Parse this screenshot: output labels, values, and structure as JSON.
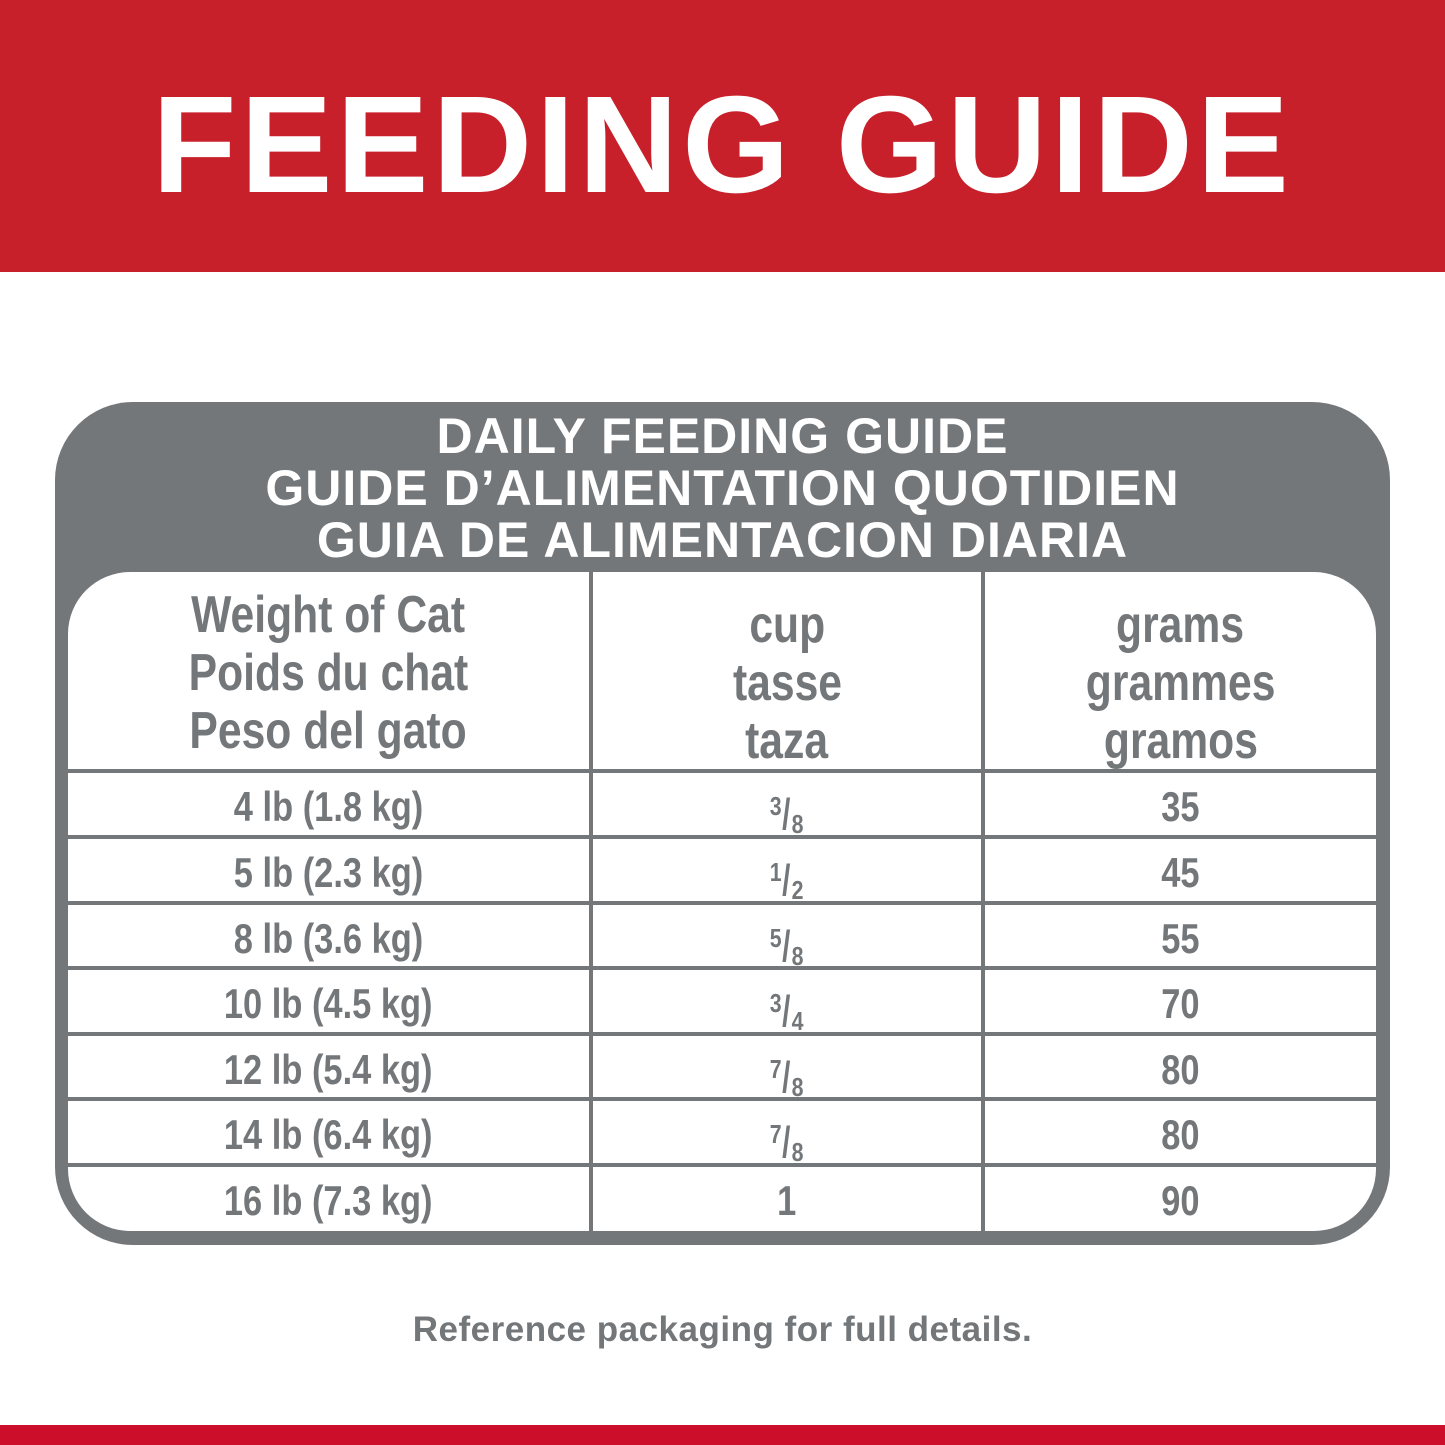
{
  "colors": {
    "brand_red": "#c8202a",
    "gray": "#73777a",
    "white": "#ffffff"
  },
  "title": "FEEDING GUIDE",
  "table": {
    "heading": [
      "DAILY FEEDING GUIDE",
      "GUIDE D’ALIMENTATION QUOTIDIEN",
      "GUIA DE ALIMENTACION DIARIA"
    ],
    "columns": [
      [
        "Weight of Cat",
        "Poids du chat",
        "Peso del gato"
      ],
      [
        "cup",
        "tasse",
        "taza"
      ],
      [
        "grams",
        "grammes",
        "gramos"
      ]
    ],
    "rows": [
      {
        "weight": "4 lb (1.8 kg)",
        "cup_num": "3",
        "cup_den": "8",
        "grams": "35"
      },
      {
        "weight": "5 lb (2.3 kg)",
        "cup_num": "1",
        "cup_den": "2",
        "grams": "45"
      },
      {
        "weight": "8 lb (3.6 kg)",
        "cup_num": "5",
        "cup_den": "8",
        "grams": "55"
      },
      {
        "weight": "10 lb (4.5 kg)",
        "cup_num": "3",
        "cup_den": "4",
        "grams": "70"
      },
      {
        "weight": "12 lb (5.4 kg)",
        "cup_num": "7",
        "cup_den": "8",
        "grams": "80"
      },
      {
        "weight": "14 lb (6.4 kg)",
        "cup_num": "7",
        "cup_den": "8",
        "grams": "80"
      },
      {
        "weight": "16 lb (7.3 kg)",
        "cup": "1",
        "grams": "90"
      }
    ]
  },
  "footer": "Reference packaging for full details."
}
